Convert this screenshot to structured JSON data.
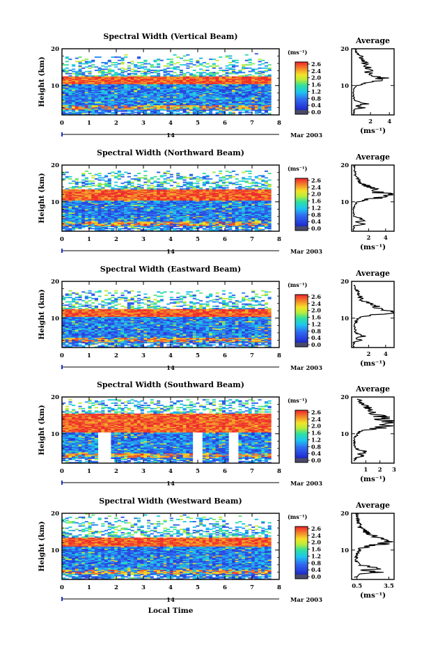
{
  "chart_data": [
    {
      "type": "heatmap",
      "title": "Spectral Width (Vertical Beam)",
      "ylabel": "Height (km)",
      "ylim": [
        2,
        20
      ],
      "yticks": [
        "20",
        "10"
      ],
      "xlim": [
        0,
        8
      ],
      "xticks": [
        "0",
        "1",
        "2",
        "3",
        "4",
        "5",
        "6",
        "7",
        "8"
      ],
      "date_day": "14",
      "date_label": "Mar 2003",
      "colorbar": {
        "unit": "(ms⁻¹)",
        "ticks": [
          "2.6",
          "2.4",
          "2.0",
          "1.6",
          "1.2",
          "0.8",
          "0.4",
          "0.0"
        ]
      },
      "average": {
        "title": "Average",
        "yticks": [
          "20",
          "10"
        ],
        "xticks": [
          "2",
          "4"
        ],
        "xlabel": "(ms⁻¹)",
        "xlim": [
          0,
          4.5
        ],
        "profile": [
          [
            0.3,
            20
          ],
          [
            1.0,
            18
          ],
          [
            1.4,
            16.5
          ],
          [
            1.8,
            15
          ],
          [
            2.0,
            14
          ],
          [
            2.3,
            13
          ],
          [
            2.8,
            12.4
          ],
          [
            4.0,
            11.6
          ],
          [
            2.4,
            11
          ],
          [
            0.5,
            10
          ],
          [
            0.2,
            9
          ],
          [
            0.2,
            7
          ],
          [
            0.3,
            6
          ],
          [
            1.6,
            5
          ],
          [
            0.4,
            4.5
          ],
          [
            1.3,
            4
          ],
          [
            0.3,
            3.5
          ],
          [
            0.2,
            2
          ]
        ]
      },
      "features": {
        "band_low": 10.5,
        "band_high": 12.5,
        "top_height": 20,
        "holes": false
      }
    },
    {
      "type": "heatmap",
      "title": "Spectral Width (Northward Beam)",
      "ylabel": "Height (km)",
      "ylim": [
        2,
        20
      ],
      "yticks": [
        "20",
        "10"
      ],
      "xlim": [
        0,
        8
      ],
      "xticks": [
        "0",
        "1",
        "2",
        "3",
        "4",
        "5",
        "6",
        "7",
        "8"
      ],
      "date_day": "14",
      "date_label": "Mar 2003",
      "colorbar": {
        "unit": "(ms⁻¹)",
        "ticks": [
          "2.6",
          "2.4",
          "2.0",
          "1.6",
          "1.2",
          "0.8",
          "0.4",
          "0.0"
        ]
      },
      "average": {
        "title": "Average",
        "yticks": [
          "20",
          "10"
        ],
        "xticks": [
          "2",
          "4"
        ],
        "xlabel": "(ms⁻¹)",
        "xlim": [
          0,
          5
        ],
        "profile": [
          [
            0.3,
            20
          ],
          [
            0.5,
            17
          ],
          [
            1.2,
            15
          ],
          [
            2.2,
            14
          ],
          [
            3.0,
            13
          ],
          [
            4.0,
            12.2
          ],
          [
            4.8,
            11.5
          ],
          [
            3.0,
            11
          ],
          [
            0.6,
            10
          ],
          [
            0.2,
            8
          ],
          [
            0.3,
            6
          ],
          [
            1.8,
            5
          ],
          [
            0.5,
            4.5
          ],
          [
            2.0,
            4
          ],
          [
            0.3,
            3.5
          ],
          [
            0.2,
            2
          ]
        ]
      },
      "features": {
        "band_low": 10.5,
        "band_high": 13.5,
        "top_height": 18.5,
        "holes": false
      }
    },
    {
      "type": "heatmap",
      "title": "Spectral Width (Eastward Beam)",
      "ylabel": "Height (km)",
      "ylim": [
        2,
        20
      ],
      "yticks": [
        "20",
        "10"
      ],
      "xlim": [
        0,
        8
      ],
      "xticks": [
        "0",
        "1",
        "2",
        "3",
        "4",
        "5",
        "6",
        "7",
        "8"
      ],
      "date_day": "14",
      "date_label": "Mar 2003",
      "colorbar": {
        "unit": "(ms⁻¹)",
        "ticks": [
          "2.6",
          "2.4",
          "2.0",
          "1.6",
          "1.2",
          "0.8",
          "0.4",
          "0.0"
        ]
      },
      "average": {
        "title": "Average",
        "yticks": [
          "20",
          "10"
        ],
        "xticks": [
          "2",
          "4"
        ],
        "xlabel": "(ms⁻¹)",
        "xlim": [
          0,
          5
        ],
        "profile": [
          [
            0.3,
            19
          ],
          [
            0.8,
            17
          ],
          [
            1.2,
            15
          ],
          [
            2.0,
            14
          ],
          [
            3.0,
            13
          ],
          [
            4.2,
            12.2
          ],
          [
            4.8,
            11.5
          ],
          [
            3.0,
            11
          ],
          [
            0.8,
            10
          ],
          [
            0.3,
            8
          ],
          [
            0.5,
            6
          ],
          [
            1.6,
            5
          ],
          [
            0.4,
            4.5
          ],
          [
            1.2,
            4
          ],
          [
            0.3,
            3.5
          ],
          [
            0.2,
            2
          ]
        ]
      },
      "features": {
        "band_low": 10.5,
        "band_high": 12.5,
        "top_height": 17.5,
        "holes": false
      }
    },
    {
      "type": "heatmap",
      "title": "Spectral Width (Southward Beam)",
      "ylabel": "Height (km)",
      "ylim": [
        2,
        20
      ],
      "yticks": [
        "20",
        "10"
      ],
      "xlim": [
        0,
        8
      ],
      "xticks": [
        "0",
        "1",
        "2",
        "3",
        "4",
        "5",
        "6",
        "7",
        "8"
      ],
      "date_day": "14",
      "date_label": "Mar 2003",
      "colorbar": {
        "unit": "(ms⁻¹)",
        "ticks": [
          "2.6",
          "2.4",
          "2.0",
          "1.6",
          "1.2",
          "0.8",
          "0.4",
          "0.0"
        ]
      },
      "average": {
        "title": "Average",
        "yticks": [
          "20",
          "10"
        ],
        "xticks": [
          "1",
          "2",
          "3"
        ],
        "xlabel": "(ms⁻¹)",
        "xlim": [
          0,
          3
        ],
        "profile": [
          [
            0.5,
            19.5
          ],
          [
            0.8,
            18
          ],
          [
            1.4,
            16.5
          ],
          [
            2.0,
            15
          ],
          [
            2.4,
            14
          ],
          [
            2.9,
            13
          ],
          [
            2.6,
            12.2
          ],
          [
            2.0,
            11.5
          ],
          [
            0.6,
            10.5
          ],
          [
            0.2,
            9
          ],
          [
            0.2,
            7
          ],
          [
            0.3,
            6
          ],
          [
            1.2,
            5
          ],
          [
            0.4,
            4.5
          ],
          [
            1.0,
            4
          ],
          [
            0.3,
            3.5
          ],
          [
            0.2,
            2.5
          ]
        ]
      },
      "features": {
        "band_low": 10.5,
        "band_high": 15.5,
        "top_height": 19.5,
        "holes": true
      }
    },
    {
      "type": "heatmap",
      "title": "Spectral Width (Westward Beam)",
      "ylabel": "Height (km)",
      "ylim": [
        2,
        20
      ],
      "yticks": [
        "20",
        "10"
      ],
      "xlim": [
        0,
        8
      ],
      "xticks": [
        "0",
        "1",
        "2",
        "3",
        "4",
        "5",
        "6",
        "7",
        "8"
      ],
      "date_day": "14",
      "date_label": "Mar 2003",
      "xlabel": "Local Time",
      "colorbar": {
        "unit": "(ms⁻¹)",
        "ticks": [
          "2.6",
          "2.4",
          "2.0",
          "1.6",
          "1.2",
          "0.8",
          "0.4",
          "0.0"
        ]
      },
      "average": {
        "title": "Average",
        "yticks": [
          "20",
          "10"
        ],
        "xticks": [
          "0.5",
          "3.5"
        ],
        "xlabel": "(ms⁻¹)",
        "xlim": [
          0,
          4
        ],
        "profile": [
          [
            0.5,
            20
          ],
          [
            0.6,
            18
          ],
          [
            0.9,
            16
          ],
          [
            1.4,
            15
          ],
          [
            2.0,
            14
          ],
          [
            3.0,
            13
          ],
          [
            3.6,
            12.2
          ],
          [
            2.6,
            11.5
          ],
          [
            1.0,
            10.5
          ],
          [
            0.5,
            9
          ],
          [
            0.5,
            7
          ],
          [
            0.7,
            6
          ],
          [
            3.0,
            5
          ],
          [
            0.9,
            4.5
          ],
          [
            2.8,
            4
          ],
          [
            0.6,
            3.5
          ],
          [
            0.4,
            2.5
          ]
        ]
      },
      "features": {
        "band_low": 11.0,
        "band_high": 13.5,
        "top_height": 20,
        "holes": false
      }
    }
  ]
}
